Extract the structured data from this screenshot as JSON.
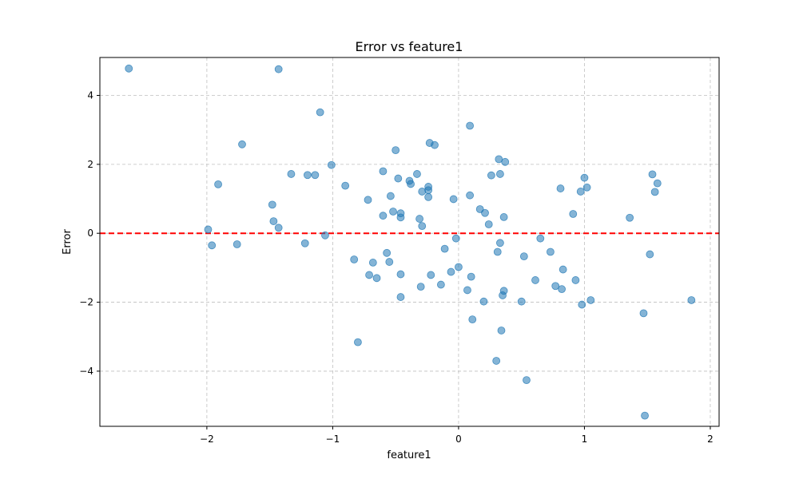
{
  "chart_data": {
    "type": "scatter",
    "title": "Error vs feature1",
    "xlabel": "feature1",
    "ylabel": "Error",
    "xlim": [
      -2.85,
      2.07
    ],
    "ylim": [
      -5.6,
      5.1
    ],
    "xticks": [
      -2,
      -1,
      0,
      1,
      2
    ],
    "yticks": [
      -4,
      -2,
      0,
      2,
      4
    ],
    "xtick_labels": [
      "−2",
      "−1",
      "0",
      "1",
      "2"
    ],
    "ytick_labels": [
      "−4",
      "−2",
      "0",
      "2",
      "4"
    ],
    "grid": true,
    "point_color": "#1f77b4",
    "reference_line": {
      "y": 0,
      "color": "#ff0000",
      "style": "dashed"
    },
    "points": [
      [
        -2.62,
        4.78
      ],
      [
        -1.43,
        4.76
      ],
      [
        -1.1,
        3.51
      ],
      [
        -1.72,
        2.58
      ],
      [
        -1.91,
        1.42
      ],
      [
        -1.33,
        1.72
      ],
      [
        -1.2,
        1.69
      ],
      [
        -1.14,
        1.69
      ],
      [
        -1.01,
        1.98
      ],
      [
        -0.9,
        1.38
      ],
      [
        -1.48,
        0.83
      ],
      [
        -1.99,
        0.11
      ],
      [
        -1.96,
        -0.35
      ],
      [
        -1.76,
        -0.32
      ],
      [
        -1.47,
        0.35
      ],
      [
        -1.43,
        0.16
      ],
      [
        -1.22,
        -0.29
      ],
      [
        -1.06,
        -0.06
      ],
      [
        -0.83,
        -0.76
      ],
      [
        -0.8,
        -3.16
      ],
      [
        -0.72,
        0.97
      ],
      [
        -0.71,
        -1.21
      ],
      [
        -0.68,
        -0.85
      ],
      [
        -0.65,
        -1.3
      ],
      [
        -0.6,
        1.8
      ],
      [
        -0.6,
        0.51
      ],
      [
        -0.57,
        -0.57
      ],
      [
        -0.55,
        -0.83
      ],
      [
        -0.54,
        1.08
      ],
      [
        -0.52,
        0.63
      ],
      [
        -0.5,
        2.41
      ],
      [
        -0.48,
        1.59
      ],
      [
        -0.46,
        0.46
      ],
      [
        -0.46,
        0.58
      ],
      [
        -0.46,
        -1.19
      ],
      [
        -0.46,
        -1.85
      ],
      [
        -0.39,
        1.52
      ],
      [
        -0.38,
        1.43
      ],
      [
        -0.33,
        1.72
      ],
      [
        -0.31,
        0.42
      ],
      [
        -0.29,
        1.21
      ],
      [
        -0.29,
        0.21
      ],
      [
        -0.3,
        -1.55
      ],
      [
        -0.23,
        2.62
      ],
      [
        -0.24,
        1.35
      ],
      [
        -0.24,
        1.25
      ],
      [
        -0.24,
        1.05
      ],
      [
        -0.22,
        -1.21
      ],
      [
        -0.19,
        2.56
      ],
      [
        -0.14,
        -1.49
      ],
      [
        -0.11,
        -0.45
      ],
      [
        -0.06,
        -1.12
      ],
      [
        -0.04,
        0.99
      ],
      [
        -0.02,
        -0.15
      ],
      [
        0.0,
        -0.98
      ],
      [
        0.07,
        -1.65
      ],
      [
        0.09,
        1.1
      ],
      [
        0.09,
        3.12
      ],
      [
        0.1,
        -1.26
      ],
      [
        0.11,
        -2.5
      ],
      [
        0.17,
        0.7
      ],
      [
        0.2,
        -1.98
      ],
      [
        0.21,
        0.59
      ],
      [
        0.24,
        0.26
      ],
      [
        0.26,
        1.68
      ],
      [
        0.31,
        -0.54
      ],
      [
        0.32,
        2.15
      ],
      [
        0.33,
        1.72
      ],
      [
        0.33,
        -0.28
      ],
      [
        0.34,
        -2.82
      ],
      [
        0.35,
        -1.8
      ],
      [
        0.36,
        -1.67
      ],
      [
        0.36,
        0.47
      ],
      [
        0.37,
        2.07
      ],
      [
        0.3,
        -3.7
      ],
      [
        0.5,
        -1.98
      ],
      [
        0.52,
        -0.67
      ],
      [
        0.54,
        -4.26
      ],
      [
        0.61,
        -1.36
      ],
      [
        0.65,
        -0.15
      ],
      [
        0.73,
        -0.54
      ],
      [
        0.77,
        -1.53
      ],
      [
        0.81,
        1.3
      ],
      [
        0.82,
        -1.62
      ],
      [
        0.83,
        -1.05
      ],
      [
        0.91,
        0.56
      ],
      [
        0.93,
        -1.36
      ],
      [
        0.97,
        1.21
      ],
      [
        0.98,
        -2.07
      ],
      [
        1.0,
        1.61
      ],
      [
        1.02,
        1.33
      ],
      [
        1.05,
        -1.94
      ],
      [
        1.36,
        0.45
      ],
      [
        1.47,
        -2.32
      ],
      [
        1.48,
        -5.29
      ],
      [
        1.52,
        -0.61
      ],
      [
        1.54,
        1.71
      ],
      [
        1.56,
        1.2
      ],
      [
        1.58,
        1.45
      ],
      [
        1.85,
        -1.94
      ]
    ]
  }
}
